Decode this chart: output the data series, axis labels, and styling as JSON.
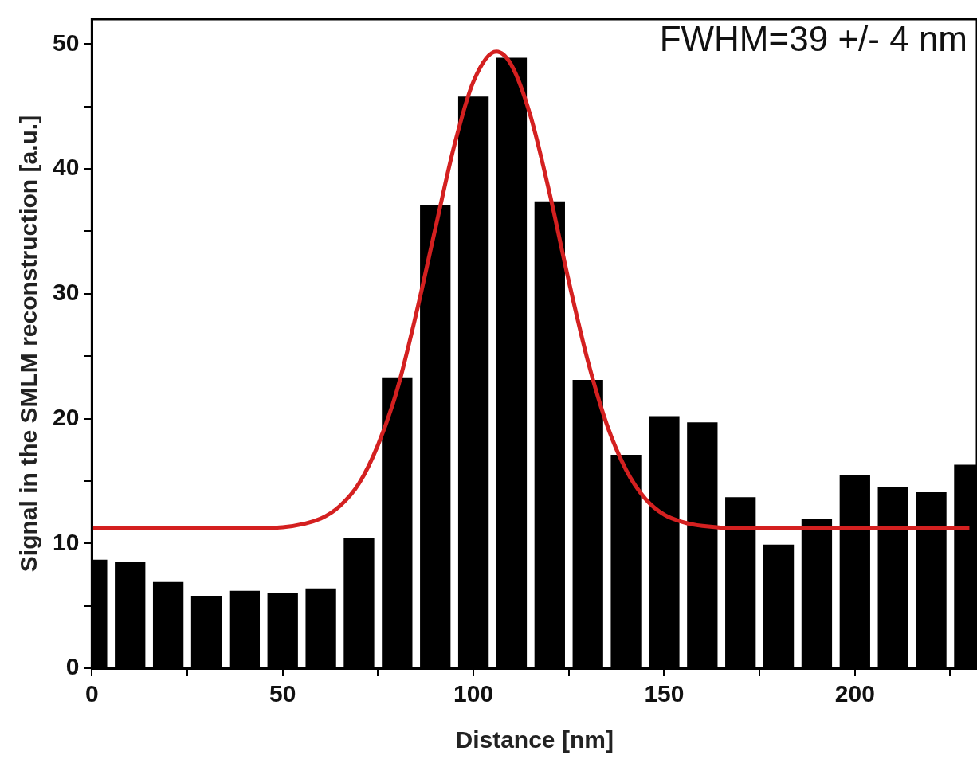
{
  "chart_data": {
    "type": "histogram",
    "xlabel": "Distance [nm]",
    "ylabel": "Signal in the SMLM reconstruction [a.u.]",
    "bins": [
      -5,
      5,
      15,
      25,
      35,
      45,
      55,
      65,
      75,
      85,
      95,
      105,
      115,
      125,
      135,
      145,
      155,
      165,
      175,
      185,
      195,
      205,
      215,
      225,
      235
    ],
    "values": [
      8.7,
      8.5,
      6.9,
      5.8,
      6.2,
      6.0,
      6.4,
      10.4,
      23.3,
      37.1,
      45.8,
      48.9,
      37.4,
      23.1,
      17.1,
      20.2,
      19.7,
      13.7,
      9.9,
      12.0,
      15.5,
      14.5,
      14.1,
      16.3
    ],
    "color": "#000000",
    "series": [
      {
        "type": "line",
        "color": "#d42020",
        "x": [
          0,
          40,
          50,
          60,
          65,
          70,
          75,
          80,
          85,
          90,
          95,
          100,
          106,
          110,
          115,
          120,
          125,
          130,
          135,
          140,
          145,
          150,
          155,
          160,
          170,
          230
        ],
        "values": [
          11.2,
          11.2,
          11.3,
          12.0,
          13.0,
          14.8,
          17.9,
          22.3,
          28.4,
          35.2,
          41.9,
          47.0,
          49.4,
          48.3,
          44.2,
          38.0,
          31.0,
          24.6,
          19.5,
          15.9,
          13.6,
          12.3,
          11.7,
          11.4,
          11.2,
          11.2
        ]
      }
    ],
    "annotations": [
      "FWHM=39 +/- 4 nm"
    ],
    "xlim": [
      0,
      232
    ],
    "xticks": [
      0,
      {
        "value": 25,
        "label": null
      },
      50,
      {
        "value": 75,
        "label": null
      },
      100,
      {
        "value": 125,
        "label": null
      },
      150,
      {
        "value": 175,
        "label": null
      },
      200,
      {
        "value": 225,
        "label": null
      }
    ],
    "ylim": [
      0,
      52
    ],
    "yticks": [
      0,
      {
        "value": 5,
        "label": null
      },
      10,
      {
        "value": 15,
        "label": null
      },
      20,
      {
        "value": 25,
        "label": null
      },
      30,
      {
        "value": 35,
        "label": null
      },
      40,
      {
        "value": 45,
        "label": null
      },
      50
    ],
    "grid": false,
    "legend": false,
    "marker": "none",
    "line_style": "solid"
  }
}
